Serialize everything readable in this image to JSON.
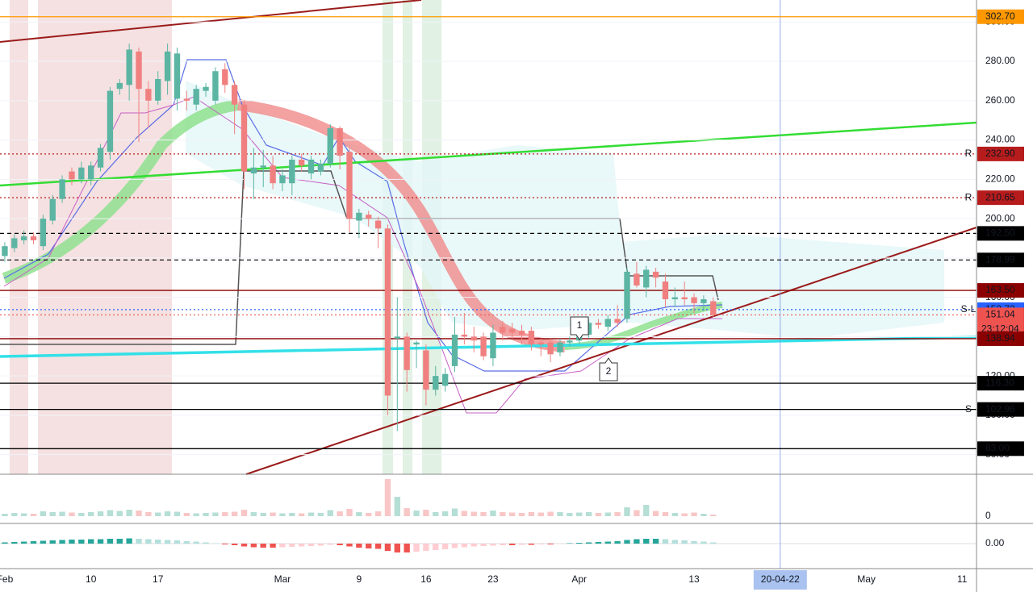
{
  "chart_data": {
    "type": "candlestick",
    "categories": [
      "Feb",
      null,
      null,
      null,
      null,
      null,
      null,
      null,
      null,
      "10",
      null,
      null,
      null,
      null,
      null,
      null,
      "17",
      null,
      null,
      null,
      null,
      null,
      null,
      null,
      null,
      null,
      null,
      null,
      null,
      "Mar",
      null,
      null,
      null,
      null,
      null,
      null,
      null,
      "9",
      null,
      null,
      null,
      null,
      null,
      null,
      "16",
      null,
      null,
      null,
      null,
      null,
      null,
      "23",
      null,
      null,
      null,
      null,
      null,
      null,
      null,
      null,
      "Apr",
      null,
      null,
      null,
      null,
      null,
      null,
      null,
      null,
      null,
      null,
      null,
      "13",
      null,
      null,
      null,
      null,
      null,
      null,
      null,
      null,
      "20-04-22",
      null,
      null,
      null,
      null,
      null,
      null,
      null,
      null,
      "May",
      null,
      null,
      null,
      null,
      null,
      null,
      null,
      null,
      null,
      "11",
      null
    ],
    "open": [
      181,
      185,
      189,
      191,
      186,
      199,
      210,
      224,
      220,
      220,
      226,
      234,
      266,
      268,
      285,
      266,
      260,
      270,
      261,
      261,
      258,
      265,
      260,
      276,
      268,
      258,
      223,
      226,
      227,
      218,
      218,
      230,
      223,
      224,
      228,
      246,
      234,
      199,
      202,
      199,
      195,
      139,
      140,
      136,
      133,
      113,
      115,
      125,
      141,
      140,
      140,
      129,
      145,
      144,
      143,
      143,
      137,
      137,
      132,
      137,
      138,
      141,
      147,
      145,
      149,
      149,
      172,
      165,
      173,
      168,
      159,
      160,
      160,
      157,
      158,
      null,
      null,
      null,
      null,
      null,
      null,
      null,
      null,
      null,
      null,
      null,
      null,
      null,
      null,
      null,
      null,
      null,
      null,
      null,
      null,
      null,
      null,
      null,
      null,
      null,
      null,
      null
    ],
    "high": [
      188,
      192,
      194,
      193,
      202,
      212,
      222,
      226,
      229,
      229,
      238,
      267,
      271,
      289,
      287,
      270,
      275,
      289,
      287,
      265,
      268,
      269,
      277,
      279,
      270,
      260,
      236,
      235,
      232,
      225,
      232,
      233,
      232,
      230,
      248,
      247,
      236,
      205,
      204,
      201,
      197,
      160,
      142,
      138,
      136,
      125,
      124,
      150,
      152,
      145,
      142,
      146,
      148,
      147,
      146,
      145,
      139,
      139,
      139,
      140,
      146,
      149,
      149,
      151,
      156,
      175,
      178,
      176,
      175,
      172,
      165,
      168,
      162,
      161,
      160,
      null,
      null,
      null,
      null,
      null,
      null,
      null,
      null,
      null,
      null,
      null,
      null,
      null,
      null,
      null,
      null,
      null,
      null,
      null,
      null,
      null,
      null,
      null,
      null,
      null,
      null,
      null
    ],
    "low": [
      178,
      183,
      187,
      187,
      184,
      197,
      208,
      217,
      218,
      217,
      224,
      230,
      263,
      260,
      239,
      246,
      258,
      263,
      255,
      255,
      255,
      262,
      258,
      264,
      243,
      215,
      210,
      216,
      215,
      214,
      212,
      224,
      220,
      222,
      226,
      225,
      193,
      190,
      196,
      185,
      100,
      92,
      112,
      124,
      105,
      110,
      112,
      122,
      136,
      132,
      128,
      125,
      138,
      139,
      136,
      133,
      130,
      127,
      130,
      135,
      136,
      139,
      144,
      143,
      145,
      147,
      165,
      160,
      165,
      155,
      155,
      156,
      152,
      153,
      150,
      null,
      null,
      null,
      null,
      null,
      null,
      null,
      null,
      null,
      null,
      null,
      null,
      null,
      null,
      null,
      null,
      null,
      null,
      null,
      null,
      null,
      null,
      null,
      null,
      null,
      null,
      null
    ],
    "close": [
      186,
      190,
      191,
      189,
      200,
      210,
      220,
      220,
      226,
      227,
      236,
      265,
      269,
      286,
      266,
      260,
      271,
      285,
      284,
      260,
      266,
      267,
      275,
      268,
      258,
      224,
      226,
      227,
      218,
      222,
      230,
      227,
      230,
      228,
      246,
      232,
      200,
      203,
      200,
      195,
      110,
      140,
      123,
      137,
      113,
      120,
      121,
      141,
      140,
      138,
      130,
      142,
      142,
      142,
      141,
      136,
      136,
      131,
      137,
      138,
      140,
      147,
      146,
      149,
      147,
      173,
      166,
      174,
      170,
      159,
      160,
      159,
      157,
      159,
      151.04,
      null,
      null,
      null,
      null,
      null,
      null,
      null,
      null,
      null,
      null,
      null,
      null,
      null,
      null,
      null,
      null,
      null,
      null,
      null,
      null,
      null,
      null,
      null,
      null,
      null,
      null,
      null
    ],
    "up_color": "#5bb5a2",
    "down_color": "#f08080",
    "ylim": [
      70,
      311.2
    ],
    "yticks": [
      {
        "value": 80,
        "label": "80.00"
      },
      {
        "value": 100,
        "label": "100.00"
      },
      {
        "value": 120,
        "label": "120.00"
      },
      {
        "value": 140,
        "label": "140.00"
      },
      {
        "value": 160,
        "label": "160.00"
      },
      {
        "value": 180,
        "label": "180.00"
      },
      {
        "value": 200,
        "label": "200.00"
      },
      {
        "value": 220,
        "label": "220.00"
      },
      {
        "value": 240,
        "label": "240.00"
      },
      {
        "value": 260,
        "label": "260.00"
      },
      {
        "value": 280,
        "label": "280.00"
      },
      {
        "value": 300,
        "label": "300.00"
      }
    ],
    "levels": [
      {
        "value": 302.7,
        "label": "302.70",
        "color": "#ff9800",
        "style": "solid"
      },
      {
        "value": 232.9,
        "label": "232.90",
        "color": "#b71c1c",
        "style": "dotted",
        "tag": "R"
      },
      {
        "value": 210.65,
        "label": "210.65",
        "color": "#b71c1c",
        "style": "dotted",
        "tag": "R"
      },
      {
        "value": 192.5,
        "label": "192.50",
        "color": "#000000",
        "style": "dashed"
      },
      {
        "value": 178.99,
        "label": "178.99",
        "color": "#000000",
        "style": "dashed"
      },
      {
        "value": 163.5,
        "label": "163.50",
        "color": "#8b0000",
        "style": "solid"
      },
      {
        "value": 153.72,
        "label": "153.72",
        "color": "#2962ff",
        "style": "dotted",
        "tag": "S-L"
      },
      {
        "value": 151.04,
        "label": "151.04",
        "color": "#ef5350",
        "style": "dotted",
        "sub": "23:12:04"
      },
      {
        "value": 138.94,
        "label": "138.94",
        "color": "#8b0000",
        "style": "solid"
      },
      {
        "value": 116.3,
        "label": "116.30",
        "color": "#000000",
        "style": "solid"
      },
      {
        "value": 102.96,
        "label": "102.96",
        "color": "#000000",
        "style": "solid",
        "tag": "S"
      },
      {
        "value": 83,
        "label": "83.00",
        "color": "#000000",
        "style": "solid"
      }
    ],
    "crosshair_index": 81,
    "volume": {
      "values": [
        0.6,
        0.8,
        0.7,
        0.6,
        1.2,
        1.0,
        1.1,
        0.9,
        0.8,
        1.0,
        1.2,
        1.5,
        1.3,
        1.6,
        1.4,
        1.0,
        0.9,
        1.2,
        1.1,
        0.8,
        0.7,
        0.8,
        0.9,
        1.0,
        1.1,
        1.6,
        1.0,
        0.8,
        0.9,
        0.7,
        0.8,
        0.7,
        0.9,
        0.8,
        1.5,
        1.2,
        1.8,
        1.0,
        0.8,
        1.2,
        9.2,
        4.8,
        2.0,
        1.4,
        1.6,
        1.0,
        1.2,
        1.9,
        1.3,
        1.1,
        1.0,
        1.4,
        1.0,
        0.9,
        0.8,
        1.0,
        0.9,
        1.1,
        1.0,
        0.8,
        0.9,
        1.0,
        0.8,
        0.9,
        1.0,
        2.2,
        1.5,
        2.8,
        1.3,
        1.0,
        0.8,
        0.7,
        0.9,
        0.6,
        0.4,
        null,
        null,
        null,
        null,
        null,
        null,
        null,
        null,
        null,
        null,
        null,
        null,
        null,
        null,
        null,
        null,
        null,
        null,
        null,
        null,
        null,
        null,
        null,
        null,
        null,
        null,
        null
      ],
      "ylim": [
        0,
        10
      ],
      "yticks": [
        0
      ]
    },
    "macd": {
      "values": [
        0.3,
        0.4,
        0.5,
        0.6,
        0.7,
        0.8,
        0.9,
        1.0,
        1.0,
        1.1,
        1.1,
        1.2,
        1.2,
        1.3,
        1.2,
        1.1,
        1.0,
        0.9,
        0.8,
        0.6,
        0.5,
        0.3,
        0.1,
        -0.2,
        -0.4,
        -0.7,
        -0.9,
        -1.0,
        -1.0,
        -0.9,
        -0.8,
        -0.7,
        -0.6,
        -0.5,
        -0.3,
        -0.4,
        -0.7,
        -1.0,
        -1.2,
        -1.3,
        -1.8,
        -2.2,
        -2.2,
        -2.0,
        -1.8,
        -1.6,
        -1.4,
        -1.1,
        -0.9,
        -0.7,
        -0.6,
        -0.5,
        -0.4,
        -0.4,
        -0.3,
        -0.3,
        -0.2,
        -0.2,
        -0.1,
        0.1,
        0.2,
        0.3,
        0.4,
        0.5,
        0.6,
        0.9,
        1.1,
        1.2,
        1.2,
        1.1,
        0.9,
        0.8,
        0.6,
        0.5,
        0.3,
        null,
        null,
        null,
        null,
        null,
        null,
        null,
        null,
        null,
        null,
        null,
        null,
        null,
        null,
        null,
        null,
        null,
        null,
        null,
        null,
        null,
        null,
        null,
        null,
        null,
        null,
        null
      ],
      "ylim": [
        -6.2,
        4.8
      ],
      "yticks": [
        {
          "value": 0,
          "label": "0.00"
        }
      ]
    },
    "annotations": [
      "1",
      "2"
    ]
  }
}
